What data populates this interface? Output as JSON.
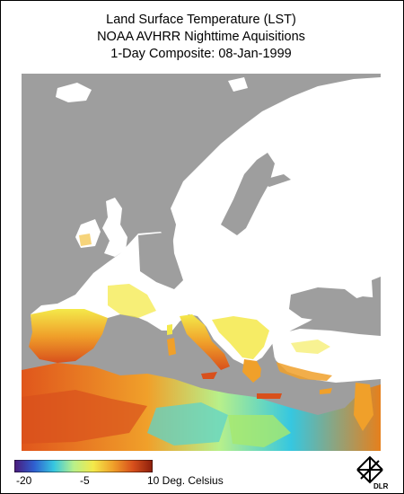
{
  "title": {
    "line1": "Land Surface Temperature (LST)",
    "line2": "NOAA AVHRR Nighttime Aquisitions",
    "line3": "1-Day Composite: 08-Jan-1999"
  },
  "legend": {
    "ticks": [
      "-20",
      "-5",
      "10 Deg. Celsius"
    ],
    "range": [
      -20,
      10
    ],
    "unit": "Deg. Celsius",
    "colors": [
      "#4b1a7a",
      "#2f5fd0",
      "#36c7e0",
      "#b8f08a",
      "#f4e94a",
      "#f0a02a",
      "#d8501c",
      "#8a1e0c"
    ]
  },
  "logo": {
    "text": "DLR"
  },
  "colors": {
    "sea": "#9e9e9e",
    "land_no_data": "#ffffff",
    "background": "#ffffff"
  }
}
